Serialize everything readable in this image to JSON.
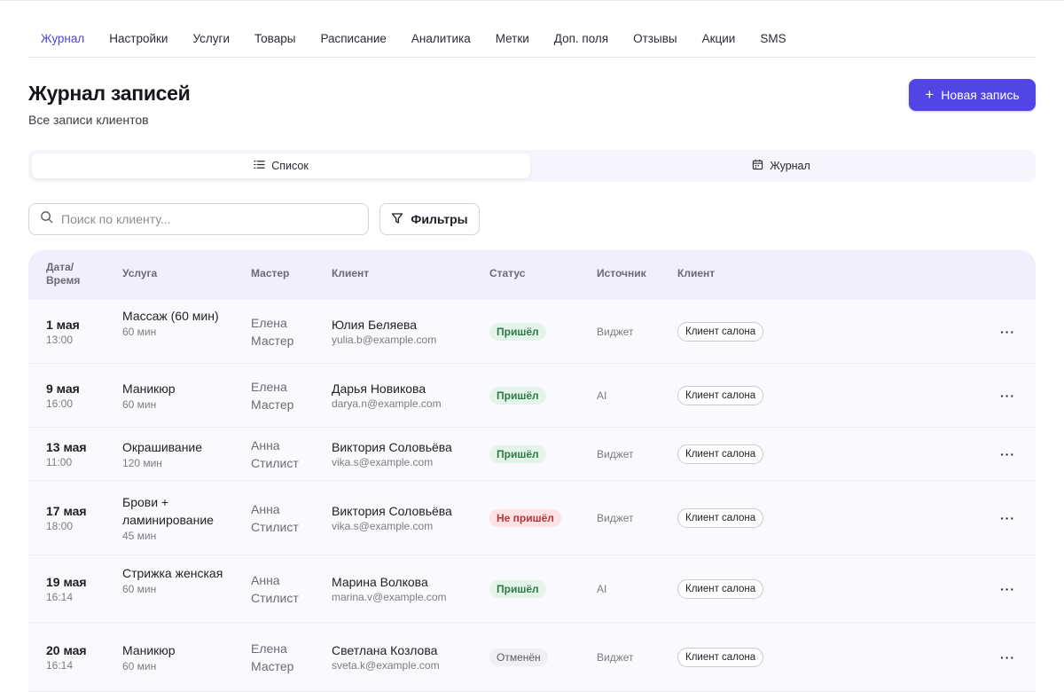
{
  "nav": [
    "Журнал",
    "Настройки",
    "Услуги",
    "Товары",
    "Расписание",
    "Аналитика",
    "Метки",
    "Доп. поля",
    "Отзывы",
    "Акции",
    "SMS"
  ],
  "header": {
    "title": "Журнал записей",
    "subtitle": "Все записи клиентов",
    "new_button": "Новая запись"
  },
  "view_toggle": {
    "list": "Список",
    "journal": "Журнал",
    "active": "list"
  },
  "search": {
    "placeholder": "Поиск по клиенту...",
    "value": ""
  },
  "filters_label": "Фильтры",
  "table": {
    "columns": {
      "datetime": "Дата/\nВремя",
      "service": "Услуга",
      "master": "Мастер",
      "client": "Клиент",
      "status": "Статус",
      "source": "Источник",
      "client_type": "Клиент"
    },
    "rows": [
      {
        "date": "1 мая",
        "time": "13:00",
        "service": "Массаж (60 мин)",
        "duration": "60 мин",
        "master": "Елена Мастер",
        "client_name": "Юлия Беляева",
        "client_email": "yulia.b@example.com",
        "status": "Пришёл",
        "status_kind": "ok",
        "source": "Виджет",
        "client_type": "Клиент салона"
      },
      {
        "date": "9 мая",
        "time": "16:00",
        "service": "Маникюр",
        "duration": "60 мин",
        "master": "Елена Мастер",
        "client_name": "Дарья Новикова",
        "client_email": "darya.n@example.com",
        "status": "Пришёл",
        "status_kind": "ok",
        "source": "AI",
        "client_type": "Клиент салона"
      },
      {
        "date": "13 мая",
        "time": "11:00",
        "service": "Окрашивание",
        "duration": "120 мин",
        "master": "Анна Стилист",
        "client_name": "Виктория Соловьёва",
        "client_email": "vika.s@example.com",
        "status": "Пришёл",
        "status_kind": "ok",
        "source": "Виджет",
        "client_type": "Клиент салона"
      },
      {
        "date": "17 мая",
        "time": "18:00",
        "service": "Брови + ламинирование",
        "duration": "45 мин",
        "master": "Анна Стилист",
        "client_name": "Виктория Соловьёва",
        "client_email": "vika.s@example.com",
        "status": "Не пришёл",
        "status_kind": "no",
        "source": "Виджет",
        "client_type": "Клиент салона"
      },
      {
        "date": "19 мая",
        "time": "16:14",
        "service": "Стрижка женская",
        "duration": "60 мин",
        "master": "Анна Стилист",
        "client_name": "Марина Волкова",
        "client_email": "marina.v@example.com",
        "status": "Пришёл",
        "status_kind": "ok",
        "source": "AI",
        "client_type": "Клиент салона"
      },
      {
        "date": "20 мая",
        "time": "16:14",
        "service": "Маникюр",
        "duration": "60 мин",
        "master": "Елена Мастер",
        "client_name": "Светлана Козлова",
        "client_email": "sveta.k@example.com",
        "status": "Отменён",
        "status_kind": "cancel",
        "source": "Виджет",
        "client_type": "Клиент салона"
      }
    ],
    "row_menu_label": "···"
  },
  "colors": {
    "accent": "#5146e5",
    "ok": "#2c7a44",
    "no": "#b8343c",
    "muted": "#7b7b86"
  }
}
